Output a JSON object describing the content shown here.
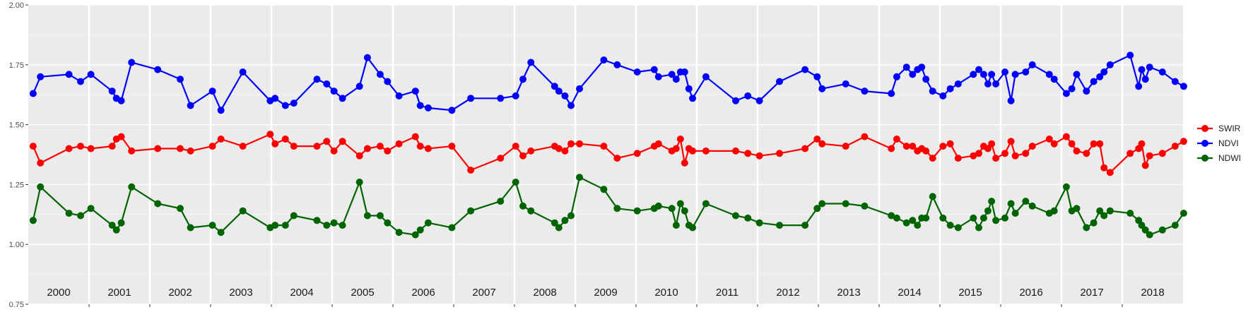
{
  "chart_data": {
    "type": "line",
    "title": "",
    "xlabel": "",
    "ylabel": "",
    "ylim": [
      0.75,
      2.0
    ],
    "y_ticks": [
      "0.75",
      "1.00",
      "1.25",
      "1.50",
      "1.75",
      "2.00"
    ],
    "xlim": [
      2000.0,
      2019.0
    ],
    "grid": true,
    "legend_position": "right",
    "x_tick_labels": [
      "2000",
      "2001",
      "2002",
      "2003",
      "2004",
      "2005",
      "2006",
      "2007",
      "2008",
      "2009",
      "2010",
      "2011",
      "2012",
      "2013",
      "2014",
      "2015",
      "2016",
      "2017",
      "2018"
    ],
    "series": [
      {
        "name": "SWIR",
        "color": "#ff0000",
        "x": [
          2000.08,
          2000.2,
          2000.67,
          2000.86,
          2001.03,
          2001.38,
          2001.45,
          2001.53,
          2001.7,
          2002.13,
          2002.5,
          2002.67,
          2003.03,
          2003.17,
          2003.53,
          2003.98,
          2004.06,
          2004.23,
          2004.37,
          2004.75,
          2004.91,
          2005.03,
          2005.17,
          2005.45,
          2005.58,
          2005.79,
          2005.91,
          2006.1,
          2006.37,
          2006.45,
          2006.58,
          2006.97,
          2007.28,
          2007.77,
          2008.02,
          2008.14,
          2008.27,
          2008.66,
          2008.73,
          2008.83,
          2008.93,
          2009.07,
          2009.47,
          2009.69,
          2010.02,
          2010.3,
          2010.37,
          2010.59,
          2010.66,
          2010.73,
          2010.8,
          2010.87,
          2010.93,
          2011.15,
          2011.64,
          2011.84,
          2012.03,
          2012.36,
          2012.78,
          2012.98,
          2013.06,
          2013.45,
          2013.76,
          2014.2,
          2014.29,
          2014.45,
          2014.55,
          2014.63,
          2014.7,
          2014.77,
          2014.88,
          2015.05,
          2015.17,
          2015.3,
          2015.55,
          2015.64,
          2015.72,
          2015.79,
          2015.85,
          2015.92,
          2016.07,
          2016.17,
          2016.24,
          2016.41,
          2016.52,
          2016.8,
          2016.88,
          2017.08,
          2017.17,
          2017.25,
          2017.41,
          2017.53,
          2017.63,
          2017.7,
          2017.8,
          2018.13,
          2018.27,
          2018.32,
          2018.38,
          2018.45,
          2018.66,
          2018.87,
          2019.01
        ],
        "y": [
          1.41,
          1.34,
          1.4,
          1.41,
          1.4,
          1.41,
          1.44,
          1.45,
          1.39,
          1.4,
          1.4,
          1.39,
          1.41,
          1.44,
          1.41,
          1.46,
          1.42,
          1.44,
          1.41,
          1.41,
          1.43,
          1.39,
          1.43,
          1.37,
          1.4,
          1.41,
          1.39,
          1.42,
          1.45,
          1.41,
          1.4,
          1.41,
          1.31,
          1.36,
          1.41,
          1.37,
          1.39,
          1.41,
          1.4,
          1.39,
          1.42,
          1.42,
          1.41,
          1.36,
          1.38,
          1.41,
          1.42,
          1.39,
          1.4,
          1.44,
          1.34,
          1.4,
          1.39,
          1.39,
          1.39,
          1.38,
          1.37,
          1.38,
          1.4,
          1.44,
          1.42,
          1.41,
          1.45,
          1.4,
          1.44,
          1.41,
          1.41,
          1.39,
          1.4,
          1.39,
          1.36,
          1.41,
          1.42,
          1.36,
          1.37,
          1.38,
          1.41,
          1.4,
          1.42,
          1.36,
          1.38,
          1.43,
          1.37,
          1.38,
          1.41,
          1.44,
          1.42,
          1.45,
          1.42,
          1.39,
          1.38,
          1.42,
          1.42,
          1.32,
          1.3,
          1.38,
          1.4,
          1.42,
          1.33,
          1.37,
          1.38,
          1.41,
          1.43
        ]
      },
      {
        "name": "NDVI",
        "color": "#0000ff",
        "x": [
          2000.08,
          2000.2,
          2000.67,
          2000.86,
          2001.03,
          2001.38,
          2001.45,
          2001.53,
          2001.7,
          2002.13,
          2002.5,
          2002.67,
          2003.03,
          2003.17,
          2003.53,
          2003.98,
          2004.06,
          2004.23,
          2004.37,
          2004.75,
          2004.91,
          2005.03,
          2005.17,
          2005.45,
          2005.58,
          2005.79,
          2005.91,
          2006.1,
          2006.37,
          2006.45,
          2006.58,
          2006.97,
          2007.28,
          2007.77,
          2008.02,
          2008.14,
          2008.27,
          2008.66,
          2008.73,
          2008.83,
          2008.93,
          2009.07,
          2009.47,
          2009.69,
          2010.02,
          2010.3,
          2010.37,
          2010.59,
          2010.66,
          2010.73,
          2010.8,
          2010.87,
          2010.93,
          2011.15,
          2011.64,
          2011.84,
          2012.03,
          2012.36,
          2012.78,
          2012.98,
          2013.06,
          2013.45,
          2013.76,
          2014.2,
          2014.29,
          2014.45,
          2014.55,
          2014.63,
          2014.7,
          2014.77,
          2014.88,
          2015.05,
          2015.17,
          2015.3,
          2015.55,
          2015.64,
          2015.72,
          2015.79,
          2015.85,
          2015.92,
          2016.07,
          2016.17,
          2016.24,
          2016.41,
          2016.52,
          2016.8,
          2016.88,
          2017.08,
          2017.17,
          2017.25,
          2017.41,
          2017.53,
          2017.63,
          2017.7,
          2017.8,
          2018.13,
          2018.27,
          2018.32,
          2018.38,
          2018.45,
          2018.66,
          2018.87,
          2019.01
        ],
        "y": [
          1.63,
          1.7,
          1.71,
          1.68,
          1.71,
          1.64,
          1.61,
          1.6,
          1.76,
          1.73,
          1.69,
          1.58,
          1.64,
          1.56,
          1.72,
          1.6,
          1.61,
          1.58,
          1.59,
          1.69,
          1.67,
          1.64,
          1.61,
          1.66,
          1.78,
          1.71,
          1.68,
          1.62,
          1.64,
          1.58,
          1.57,
          1.56,
          1.61,
          1.61,
          1.62,
          1.69,
          1.76,
          1.66,
          1.64,
          1.62,
          1.58,
          1.65,
          1.77,
          1.75,
          1.72,
          1.73,
          1.7,
          1.71,
          1.69,
          1.72,
          1.72,
          1.65,
          1.61,
          1.7,
          1.6,
          1.62,
          1.6,
          1.68,
          1.73,
          1.7,
          1.65,
          1.67,
          1.64,
          1.63,
          1.7,
          1.74,
          1.71,
          1.73,
          1.74,
          1.69,
          1.64,
          1.62,
          1.65,
          1.67,
          1.71,
          1.73,
          1.71,
          1.67,
          1.71,
          1.67,
          1.72,
          1.6,
          1.71,
          1.72,
          1.75,
          1.71,
          1.69,
          1.63,
          1.65,
          1.71,
          1.64,
          1.68,
          1.7,
          1.72,
          1.75,
          1.79,
          1.66,
          1.73,
          1.69,
          1.74,
          1.72,
          1.68,
          1.66
        ]
      },
      {
        "name": "NDWI",
        "color": "#006400",
        "x": [
          2000.08,
          2000.2,
          2000.67,
          2000.86,
          2001.03,
          2001.38,
          2001.45,
          2001.53,
          2001.7,
          2002.13,
          2002.5,
          2002.67,
          2003.03,
          2003.17,
          2003.53,
          2003.98,
          2004.06,
          2004.23,
          2004.37,
          2004.75,
          2004.91,
          2005.03,
          2005.17,
          2005.45,
          2005.58,
          2005.79,
          2005.91,
          2006.1,
          2006.37,
          2006.45,
          2006.58,
          2006.97,
          2007.28,
          2007.77,
          2008.02,
          2008.14,
          2008.27,
          2008.66,
          2008.73,
          2008.83,
          2008.93,
          2009.07,
          2009.47,
          2009.69,
          2010.02,
          2010.3,
          2010.37,
          2010.59,
          2010.66,
          2010.73,
          2010.8,
          2010.87,
          2010.93,
          2011.15,
          2011.64,
          2011.84,
          2012.03,
          2012.36,
          2012.78,
          2012.98,
          2013.06,
          2013.45,
          2013.76,
          2014.2,
          2014.29,
          2014.45,
          2014.55,
          2014.63,
          2014.7,
          2014.77,
          2014.88,
          2015.05,
          2015.17,
          2015.3,
          2015.55,
          2015.64,
          2015.72,
          2015.79,
          2015.85,
          2015.92,
          2016.07,
          2016.17,
          2016.24,
          2016.41,
          2016.52,
          2016.8,
          2016.88,
          2017.08,
          2017.17,
          2017.25,
          2017.41,
          2017.53,
          2017.63,
          2017.7,
          2017.8,
          2018.13,
          2018.27,
          2018.32,
          2018.38,
          2018.45,
          2018.66,
          2018.87,
          2019.01
        ],
        "y": [
          1.1,
          1.24,
          1.13,
          1.12,
          1.15,
          1.08,
          1.06,
          1.09,
          1.24,
          1.17,
          1.15,
          1.07,
          1.08,
          1.05,
          1.14,
          1.07,
          1.08,
          1.08,
          1.12,
          1.1,
          1.08,
          1.09,
          1.08,
          1.26,
          1.12,
          1.12,
          1.09,
          1.05,
          1.04,
          1.06,
          1.09,
          1.07,
          1.14,
          1.18,
          1.26,
          1.16,
          1.14,
          1.09,
          1.07,
          1.1,
          1.12,
          1.28,
          1.23,
          1.15,
          1.14,
          1.15,
          1.16,
          1.15,
          1.08,
          1.17,
          1.14,
          1.08,
          1.07,
          1.17,
          1.12,
          1.11,
          1.09,
          1.08,
          1.08,
          1.15,
          1.17,
          1.17,
          1.16,
          1.12,
          1.11,
          1.09,
          1.1,
          1.08,
          1.11,
          1.11,
          1.2,
          1.11,
          1.08,
          1.07,
          1.11,
          1.07,
          1.11,
          1.14,
          1.18,
          1.1,
          1.11,
          1.17,
          1.13,
          1.18,
          1.16,
          1.13,
          1.14,
          1.24,
          1.14,
          1.15,
          1.07,
          1.09,
          1.14,
          1.12,
          1.14,
          1.13,
          1.1,
          1.08,
          1.06,
          1.04,
          1.06,
          1.08,
          1.13
        ]
      }
    ]
  }
}
